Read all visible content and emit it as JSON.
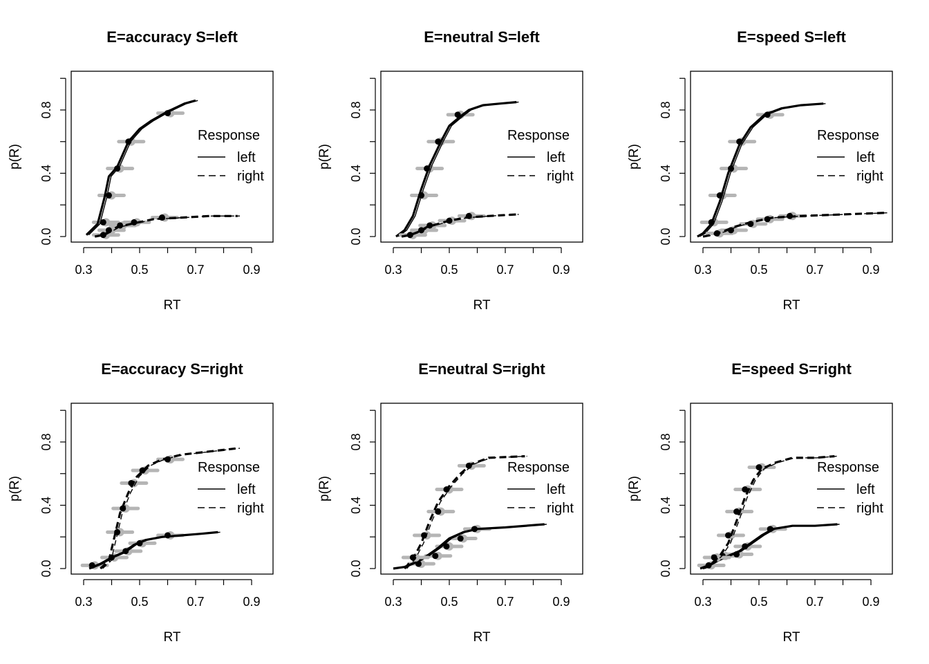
{
  "chart_data": [
    {
      "type": "line",
      "title": "E=accuracy S=left",
      "xlabel": "RT",
      "ylabel": "p(R)",
      "xlim": [
        0.25,
        1.0
      ],
      "ylim": [
        -0.03,
        1.03
      ],
      "xticks": [
        "0.3",
        "0.5",
        "0.7",
        "0.9"
      ],
      "yticks": [
        "0.0",
        "0.4",
        "0.8"
      ],
      "legend": {
        "title": "Response",
        "position": "right",
        "entries": [
          "left",
          "right"
        ]
      },
      "series": [
        {
          "name": "left",
          "style": "solid",
          "x": [
            0.31,
            0.35,
            0.375,
            0.39,
            0.42,
            0.46,
            0.5,
            0.54,
            0.6,
            0.66,
            0.7
          ],
          "y": [
            0.01,
            0.08,
            0.25,
            0.38,
            0.44,
            0.6,
            0.68,
            0.73,
            0.79,
            0.84,
            0.86
          ],
          "quantiles_x": [
            0.37,
            0.39,
            0.42,
            0.46,
            0.6
          ],
          "quantiles_y": [
            0.09,
            0.26,
            0.43,
            0.6,
            0.78
          ]
        },
        {
          "name": "right",
          "style": "dashed",
          "x": [
            0.34,
            0.37,
            0.39,
            0.42,
            0.47,
            0.55,
            0.65,
            0.75,
            0.85
          ],
          "y": [
            0.0,
            0.01,
            0.03,
            0.06,
            0.08,
            0.11,
            0.12,
            0.13,
            0.13
          ],
          "quantiles_x": [
            0.37,
            0.39,
            0.43,
            0.48,
            0.58
          ],
          "quantiles_y": [
            0.01,
            0.04,
            0.07,
            0.09,
            0.12
          ]
        }
      ]
    },
    {
      "type": "line",
      "title": "E=neutral S=left",
      "xlabel": "RT",
      "ylabel": "p(R)",
      "xlim": [
        0.25,
        1.0
      ],
      "ylim": [
        -0.03,
        1.03
      ],
      "xticks": [
        "0.3",
        "0.5",
        "0.7",
        "0.9"
      ],
      "yticks": [
        "0.0",
        "0.4",
        "0.8"
      ],
      "legend": {
        "title": "Response",
        "position": "right",
        "entries": [
          "left",
          "right"
        ]
      },
      "series": [
        {
          "name": "left",
          "style": "solid",
          "x": [
            0.31,
            0.34,
            0.37,
            0.4,
            0.43,
            0.47,
            0.5,
            0.54,
            0.57,
            0.62,
            0.68,
            0.74
          ],
          "y": [
            0.0,
            0.04,
            0.13,
            0.3,
            0.45,
            0.6,
            0.7,
            0.76,
            0.8,
            0.83,
            0.84,
            0.85
          ],
          "quantiles_x": [
            0.36,
            0.4,
            0.42,
            0.46,
            0.53
          ],
          "quantiles_y": [
            0.01,
            0.26,
            0.43,
            0.6,
            0.77
          ]
        },
        {
          "name": "right",
          "style": "dashed",
          "x": [
            0.33,
            0.36,
            0.39,
            0.42,
            0.46,
            0.5,
            0.56,
            0.64,
            0.74
          ],
          "y": [
            0.0,
            0.01,
            0.03,
            0.06,
            0.08,
            0.1,
            0.12,
            0.13,
            0.14
          ],
          "quantiles_x": [
            0.36,
            0.4,
            0.43,
            0.5,
            0.57
          ],
          "quantiles_y": [
            0.01,
            0.04,
            0.07,
            0.1,
            0.13
          ]
        }
      ]
    },
    {
      "type": "line",
      "title": "E=speed S=left",
      "xlabel": "RT",
      "ylabel": "p(R)",
      "xlim": [
        0.25,
        1.0
      ],
      "ylim": [
        -0.03,
        1.03
      ],
      "xticks": [
        "0.3",
        "0.5",
        "0.7",
        "0.9"
      ],
      "yticks": [
        "0.0",
        "0.4",
        "0.8"
      ],
      "legend": {
        "title": "Response",
        "position": "right",
        "entries": [
          "left",
          "right"
        ]
      },
      "series": [
        {
          "name": "left",
          "style": "solid",
          "x": [
            0.28,
            0.3,
            0.33,
            0.36,
            0.39,
            0.43,
            0.47,
            0.52,
            0.58,
            0.65,
            0.73
          ],
          "y": [
            0.0,
            0.02,
            0.08,
            0.22,
            0.4,
            0.58,
            0.69,
            0.77,
            0.81,
            0.83,
            0.84
          ],
          "quantiles_x": [
            0.33,
            0.36,
            0.4,
            0.43,
            0.53
          ],
          "quantiles_y": [
            0.09,
            0.26,
            0.43,
            0.6,
            0.77
          ]
        },
        {
          "name": "right",
          "style": "dashed",
          "x": [
            0.3,
            0.33,
            0.37,
            0.41,
            0.47,
            0.55,
            0.65,
            0.8,
            0.95
          ],
          "y": [
            0.0,
            0.01,
            0.03,
            0.06,
            0.09,
            0.12,
            0.13,
            0.14,
            0.15
          ],
          "quantiles_x": [
            0.35,
            0.4,
            0.47,
            0.53,
            0.61
          ],
          "quantiles_y": [
            0.02,
            0.04,
            0.08,
            0.11,
            0.13
          ]
        }
      ]
    },
    {
      "type": "line",
      "title": "E=accuracy S=right",
      "xlabel": "RT",
      "ylabel": "p(R)",
      "xlim": [
        0.25,
        1.0
      ],
      "ylim": [
        -0.03,
        1.03
      ],
      "xticks": [
        "0.3",
        "0.5",
        "0.7",
        "0.9"
      ],
      "yticks": [
        "0.0",
        "0.4",
        "0.8"
      ],
      "legend": {
        "title": "Response",
        "position": "right",
        "entries": [
          "left",
          "right"
        ]
      },
      "series": [
        {
          "name": "left",
          "style": "solid",
          "x": [
            0.32,
            0.36,
            0.4,
            0.44,
            0.48,
            0.52,
            0.58,
            0.65,
            0.72,
            0.78
          ],
          "y": [
            0.0,
            0.03,
            0.07,
            0.1,
            0.15,
            0.18,
            0.2,
            0.21,
            0.22,
            0.23
          ],
          "quantiles_x": [
            0.33,
            0.4,
            0.45,
            0.5,
            0.6
          ],
          "quantiles_y": [
            0.02,
            0.07,
            0.11,
            0.16,
            0.21
          ]
        },
        {
          "name": "right",
          "style": "dashed",
          "x": [
            0.36,
            0.39,
            0.41,
            0.43,
            0.46,
            0.49,
            0.53,
            0.58,
            0.65,
            0.75,
            0.85
          ],
          "y": [
            0.0,
            0.05,
            0.2,
            0.35,
            0.48,
            0.58,
            0.65,
            0.69,
            0.72,
            0.74,
            0.76
          ],
          "quantiles_x": [
            0.42,
            0.44,
            0.47,
            0.51,
            0.6
          ],
          "quantiles_y": [
            0.23,
            0.38,
            0.54,
            0.62,
            0.69
          ]
        }
      ]
    },
    {
      "type": "line",
      "title": "E=neutral S=right",
      "xlabel": "RT",
      "ylabel": "p(R)",
      "xlim": [
        0.25,
        1.0
      ],
      "ylim": [
        -0.03,
        1.03
      ],
      "xticks": [
        "0.3",
        "0.5",
        "0.7",
        "0.9"
      ],
      "yticks": [
        "0.0",
        "0.4",
        "0.8"
      ],
      "legend": {
        "title": "Response",
        "position": "right",
        "entries": [
          "left",
          "right"
        ]
      },
      "series": [
        {
          "name": "left",
          "style": "solid",
          "x": [
            0.3,
            0.34,
            0.38,
            0.42,
            0.46,
            0.5,
            0.55,
            0.6,
            0.7,
            0.84
          ],
          "y": [
            0.0,
            0.01,
            0.04,
            0.08,
            0.13,
            0.19,
            0.23,
            0.25,
            0.26,
            0.28
          ],
          "quantiles_x": [
            0.39,
            0.45,
            0.49,
            0.54,
            0.59
          ],
          "quantiles_y": [
            0.03,
            0.08,
            0.14,
            0.19,
            0.25
          ]
        },
        {
          "name": "right",
          "style": "dashed",
          "x": [
            0.34,
            0.37,
            0.4,
            0.43,
            0.46,
            0.5,
            0.54,
            0.58,
            0.64,
            0.77
          ],
          "y": [
            0.0,
            0.06,
            0.16,
            0.3,
            0.42,
            0.52,
            0.6,
            0.66,
            0.7,
            0.71
          ],
          "quantiles_x": [
            0.37,
            0.41,
            0.46,
            0.49,
            0.57
          ],
          "quantiles_y": [
            0.07,
            0.21,
            0.36,
            0.5,
            0.65
          ]
        }
      ]
    },
    {
      "type": "line",
      "title": "E=speed S=right",
      "xlabel": "RT",
      "ylabel": "p(R)",
      "xlim": [
        0.25,
        1.0
      ],
      "ylim": [
        -0.03,
        1.03
      ],
      "xticks": [
        "0.3",
        "0.5",
        "0.7",
        "0.9"
      ],
      "yticks": [
        "0.0",
        "0.4",
        "0.8"
      ],
      "legend": {
        "title": "Response",
        "position": "right",
        "entries": [
          "left",
          "right"
        ]
      },
      "series": [
        {
          "name": "left",
          "style": "solid",
          "x": [
            0.29,
            0.32,
            0.35,
            0.39,
            0.43,
            0.47,
            0.51,
            0.55,
            0.62,
            0.7,
            0.78
          ],
          "y": [
            0.0,
            0.02,
            0.05,
            0.08,
            0.11,
            0.16,
            0.21,
            0.25,
            0.27,
            0.27,
            0.28
          ],
          "quantiles_x": [
            0.32,
            0.37,
            0.42,
            0.45,
            0.54
          ],
          "quantiles_y": [
            0.02,
            0.08,
            0.09,
            0.14,
            0.25
          ]
        },
        {
          "name": "right",
          "style": "dashed",
          "x": [
            0.3,
            0.33,
            0.36,
            0.39,
            0.42,
            0.45,
            0.48,
            0.51,
            0.56,
            0.62,
            0.7,
            0.77
          ],
          "y": [
            0.0,
            0.03,
            0.08,
            0.16,
            0.3,
            0.45,
            0.56,
            0.63,
            0.67,
            0.7,
            0.7,
            0.71
          ],
          "quantiles_x": [
            0.34,
            0.39,
            0.42,
            0.45,
            0.5
          ],
          "quantiles_y": [
            0.07,
            0.21,
            0.36,
            0.5,
            0.64
          ]
        }
      ]
    }
  ]
}
